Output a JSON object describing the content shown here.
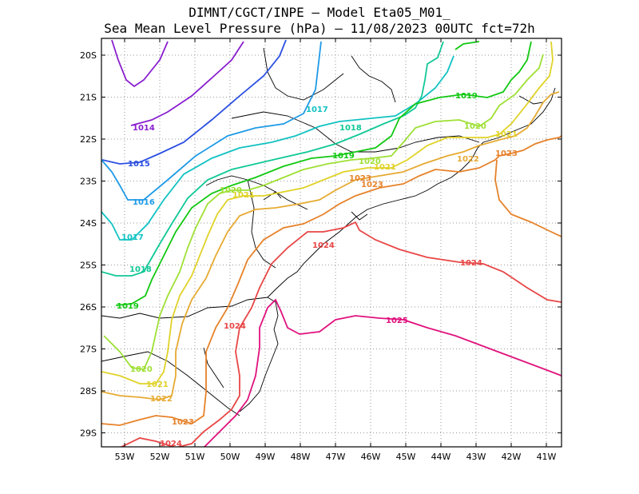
{
  "title": {
    "line1": "DIMNT/CGCT/INPE –  Model Eta05_M01_",
    "line2": "Sea Mean Level Pressure (hPa) – 11/08/2023 00UTC fct=72h"
  },
  "axes": {
    "lon_ticks": [
      "53W",
      "52W",
      "51W",
      "50W",
      "49W",
      "48W",
      "47W",
      "46W",
      "45W",
      "44W",
      "43W",
      "42W",
      "41W"
    ],
    "lat_ticks": [
      "20S",
      "21S",
      "22S",
      "23S",
      "24S",
      "25S",
      "26S",
      "27S",
      "28S",
      "29S"
    ]
  },
  "colors": {
    "1014": "#8a1fd0",
    "1015": "#2b4fe0",
    "1016": "#1e9ae6",
    "1017": "#12c2c2",
    "1018": "#10c896",
    "1019": "#12c812",
    "1020": "#9ee034",
    "1021": "#e0d228",
    "1022": "#e6aa32",
    "1023": "#e6822a",
    "1024": "#e84646",
    "1025": "#e0127e",
    "coast": "#000000",
    "grid": "#999999"
  },
  "contour_labels": [
    {
      "text": "1014",
      "level": "1014"
    },
    {
      "text": "1015",
      "level": "1015"
    },
    {
      "text": "1016",
      "level": "1016"
    },
    {
      "text": "1017",
      "level": "1017"
    },
    {
      "text": "1017",
      "level": "1017"
    },
    {
      "text": "1018",
      "level": "1018"
    },
    {
      "text": "1018",
      "level": "1018"
    },
    {
      "text": "1019",
      "level": "1019"
    },
    {
      "text": "1019",
      "level": "1019"
    },
    {
      "text": "1019",
      "level": "1019"
    },
    {
      "text": "1020",
      "level": "1020"
    },
    {
      "text": "1020",
      "level": "1020"
    },
    {
      "text": "1020",
      "level": "1020"
    },
    {
      "text": "1020",
      "level": "1020"
    },
    {
      "text": "1021",
      "level": "1021"
    },
    {
      "text": "1021",
      "level": "1021"
    },
    {
      "text": "1021",
      "level": "1021"
    },
    {
      "text": "1021",
      "level": "1021"
    },
    {
      "text": "1022",
      "level": "1022"
    },
    {
      "text": "1022",
      "level": "1022"
    },
    {
      "text": "1023",
      "level": "1023"
    },
    {
      "text": "1023",
      "level": "1023"
    },
    {
      "text": "1023",
      "level": "1023"
    },
    {
      "text": "1023",
      "level": "1023"
    },
    {
      "text": "1024",
      "level": "1024"
    },
    {
      "text": "1024",
      "level": "1024"
    },
    {
      "text": "1024",
      "level": "1024"
    },
    {
      "text": "1024",
      "level": "1024"
    },
    {
      "text": "1025",
      "level": "1025"
    }
  ]
}
